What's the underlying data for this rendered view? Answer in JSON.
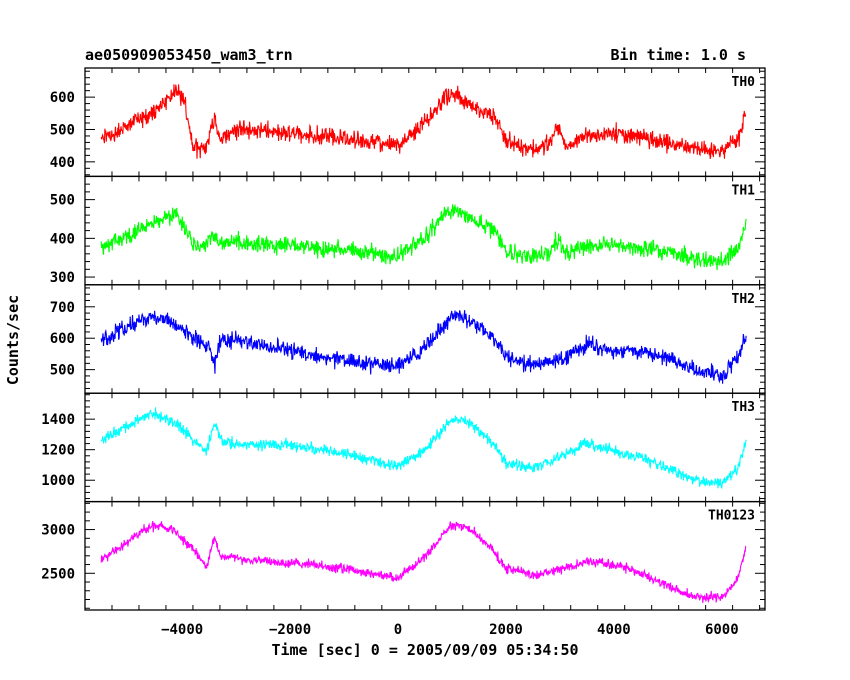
{
  "chart_data": {
    "type": "line",
    "title": "ae050909053450_wam3_trn",
    "subtitle": "Bin time: 1.0 s",
    "xlabel": "Time [sec] 0 = 2005/09/09 05:34:50",
    "ylabel": "Counts/sec",
    "xlim": [
      -5800,
      6800
    ],
    "x_ticks": [
      -4000,
      -2000,
      0,
      2000,
      4000,
      6000
    ],
    "x_tick_labels": [
      "−4000",
      "−2000",
      "0",
      "2000",
      "4000",
      "6000"
    ],
    "x_data_range": [
      -5500,
      6450
    ],
    "grid": false,
    "panels": [
      {
        "name": "TH0",
        "color": "#ff0000",
        "ylim": [
          355,
          690
        ],
        "y_ticks": [
          400,
          500,
          600
        ],
        "noise": 40,
        "profile": [
          [
            -5500,
            470
          ],
          [
            -5000,
            510
          ],
          [
            -4500,
            560
          ],
          [
            -4100,
            620
          ],
          [
            -3950,
            580
          ],
          [
            -3800,
            440
          ],
          [
            -3550,
            450
          ],
          [
            -3400,
            540
          ],
          [
            -3300,
            470
          ],
          [
            -3000,
            500
          ],
          [
            -2000,
            490
          ],
          [
            -1000,
            470
          ],
          [
            0,
            450
          ],
          [
            500,
            520
          ],
          [
            900,
            610
          ],
          [
            1100,
            605
          ],
          [
            1500,
            560
          ],
          [
            1800,
            540
          ],
          [
            2000,
            460
          ],
          [
            2400,
            440
          ],
          [
            2800,
            450
          ],
          [
            2950,
            520
          ],
          [
            3100,
            450
          ],
          [
            3500,
            480
          ],
          [
            4000,
            490
          ],
          [
            4500,
            475
          ],
          [
            5000,
            460
          ],
          [
            5500,
            440
          ],
          [
            6000,
            430
          ],
          [
            6300,
            470
          ],
          [
            6450,
            550
          ]
        ]
      },
      {
        "name": "TH1",
        "color": "#00ff00",
        "ylim": [
          280,
          560
        ],
        "y_ticks": [
          300,
          400,
          500
        ],
        "noise": 32,
        "profile": [
          [
            -5500,
            375
          ],
          [
            -5000,
            410
          ],
          [
            -4500,
            440
          ],
          [
            -4100,
            460
          ],
          [
            -3950,
            430
          ],
          [
            -3750,
            370
          ],
          [
            -3550,
            380
          ],
          [
            -3400,
            415
          ],
          [
            -3300,
            385
          ],
          [
            -3000,
            390
          ],
          [
            -2000,
            380
          ],
          [
            -1000,
            370
          ],
          [
            0,
            355
          ],
          [
            500,
            400
          ],
          [
            900,
            470
          ],
          [
            1100,
            465
          ],
          [
            1500,
            440
          ],
          [
            1800,
            425
          ],
          [
            2000,
            365
          ],
          [
            2400,
            350
          ],
          [
            2800,
            360
          ],
          [
            2950,
            400
          ],
          [
            3100,
            365
          ],
          [
            3500,
            380
          ],
          [
            4000,
            385
          ],
          [
            4500,
            375
          ],
          [
            5000,
            365
          ],
          [
            5500,
            345
          ],
          [
            6000,
            340
          ],
          [
            6300,
            370
          ],
          [
            6450,
            440
          ]
        ]
      },
      {
        "name": "TH2",
        "color": "#0000ff",
        "ylim": [
          425,
          770
        ],
        "y_ticks": [
          500,
          600,
          700
        ],
        "noise": 38,
        "profile": [
          [
            -5500,
            590
          ],
          [
            -5000,
            640
          ],
          [
            -4600,
            670
          ],
          [
            -4200,
            650
          ],
          [
            -3800,
            600
          ],
          [
            -3500,
            570
          ],
          [
            -3400,
            510
          ],
          [
            -3300,
            590
          ],
          [
            -3000,
            595
          ],
          [
            -2000,
            560
          ],
          [
            -1000,
            530
          ],
          [
            0,
            510
          ],
          [
            500,
            570
          ],
          [
            1000,
            670
          ],
          [
            1300,
            660
          ],
          [
            1700,
            610
          ],
          [
            2000,
            545
          ],
          [
            2500,
            515
          ],
          [
            3000,
            530
          ],
          [
            3500,
            580
          ],
          [
            4000,
            560
          ],
          [
            4500,
            560
          ],
          [
            5000,
            535
          ],
          [
            5500,
            500
          ],
          [
            6000,
            480
          ],
          [
            6300,
            540
          ],
          [
            6450,
            600
          ]
        ]
      },
      {
        "name": "TH3",
        "color": "#00ffff",
        "ylim": [
          860,
          1570
        ],
        "y_ticks": [
          1000,
          1200,
          1400
        ],
        "noise": 55,
        "profile": [
          [
            -5500,
            1260
          ],
          [
            -5000,
            1360
          ],
          [
            -4600,
            1440
          ],
          [
            -4200,
            1390
          ],
          [
            -3800,
            1270
          ],
          [
            -3550,
            1190
          ],
          [
            -3400,
            1370
          ],
          [
            -3250,
            1250
          ],
          [
            -3000,
            1240
          ],
          [
            -2000,
            1230
          ],
          [
            -1000,
            1180
          ],
          [
            0,
            1090
          ],
          [
            500,
            1200
          ],
          [
            1000,
            1400
          ],
          [
            1300,
            1380
          ],
          [
            1700,
            1260
          ],
          [
            2000,
            1120
          ],
          [
            2500,
            1080
          ],
          [
            3000,
            1150
          ],
          [
            3500,
            1250
          ],
          [
            4000,
            1190
          ],
          [
            4500,
            1150
          ],
          [
            5000,
            1080
          ],
          [
            5500,
            1000
          ],
          [
            6000,
            980
          ],
          [
            6300,
            1080
          ],
          [
            6450,
            1260
          ]
        ]
      },
      {
        "name": "TH0123",
        "color": "#ff00ff",
        "ylim": [
          2080,
          3320
        ],
        "y_ticks": [
          2500,
          3000
        ],
        "noise": 80,
        "profile": [
          [
            -5500,
            2650
          ],
          [
            -5000,
            2870
          ],
          [
            -4600,
            3040
          ],
          [
            -4200,
            3020
          ],
          [
            -3850,
            2810
          ],
          [
            -3550,
            2580
          ],
          [
            -3400,
            2920
          ],
          [
            -3300,
            2700
          ],
          [
            -3000,
            2660
          ],
          [
            -2000,
            2620
          ],
          [
            -1000,
            2560
          ],
          [
            0,
            2440
          ],
          [
            500,
            2700
          ],
          [
            1000,
            3050
          ],
          [
            1300,
            3020
          ],
          [
            1700,
            2820
          ],
          [
            2000,
            2560
          ],
          [
            2500,
            2480
          ],
          [
            3000,
            2540
          ],
          [
            3500,
            2640
          ],
          [
            4000,
            2600
          ],
          [
            4500,
            2500
          ],
          [
            5000,
            2350
          ],
          [
            5500,
            2230
          ],
          [
            6000,
            2230
          ],
          [
            6300,
            2450
          ],
          [
            6450,
            2800
          ]
        ]
      }
    ]
  }
}
